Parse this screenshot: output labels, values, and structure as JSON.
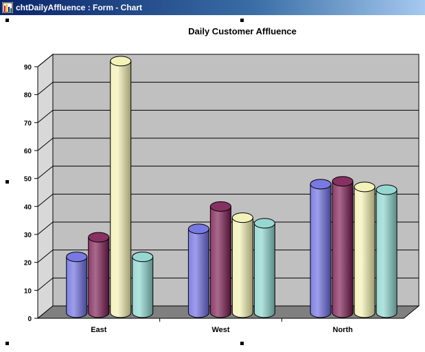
{
  "window": {
    "title": "chtDailyAffluence : Form - Chart"
  },
  "icons": {
    "app": "chart-form-icon"
  },
  "chart_data": {
    "type": "bar",
    "style": "3d-cylinder",
    "title": "Daily Customer Affluence",
    "xlabel": "",
    "ylabel": "",
    "categories": [
      "East",
      "West",
      "North"
    ],
    "ylim": [
      0,
      90
    ],
    "yticks": [
      0,
      10,
      20,
      30,
      40,
      50,
      60,
      70,
      80,
      90
    ],
    "grid": true,
    "legend": "none",
    "series": [
      {
        "color": "#6a6ae0",
        "values": [
          20,
          30,
          46
        ]
      },
      {
        "color": "#7a1a50",
        "values": [
          27,
          38,
          47
        ]
      },
      {
        "color": "#f2f0b0",
        "values": [
          90,
          34,
          45
        ]
      },
      {
        "color": "#8ad4cc",
        "values": [
          20,
          32,
          44
        ]
      }
    ],
    "plot_background": "#c0c0c0",
    "floor_color": "#808080"
  }
}
